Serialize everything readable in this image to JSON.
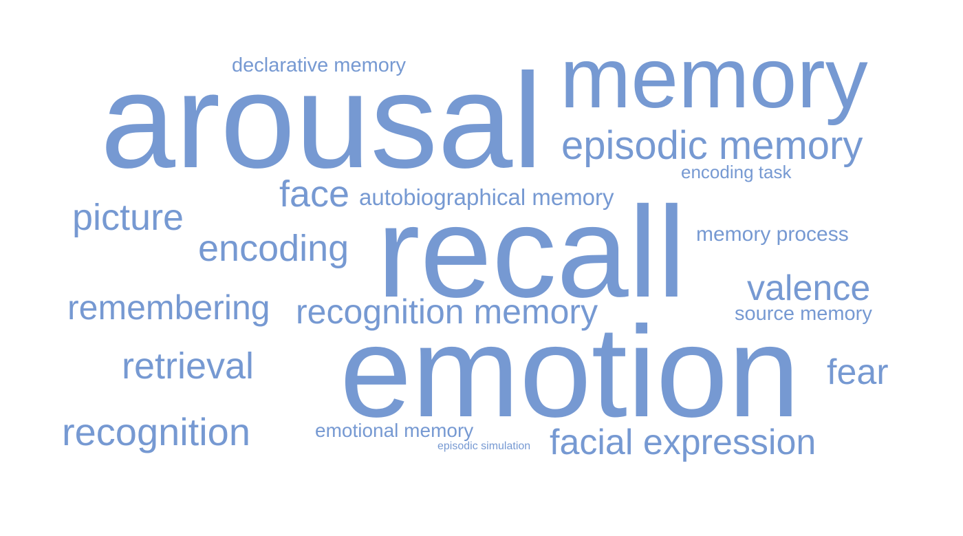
{
  "word_cloud": {
    "color": "#7699d2",
    "words": [
      {
        "id": "arousal",
        "text": "arousal"
      },
      {
        "id": "memory",
        "text": "memory"
      },
      {
        "id": "recall",
        "text": "recall"
      },
      {
        "id": "emotion",
        "text": "emotion"
      },
      {
        "id": "episodic-memory",
        "text": "episodic memory"
      },
      {
        "id": "declarative-memory",
        "text": "declarative memory"
      },
      {
        "id": "encoding-task",
        "text": "encoding task"
      },
      {
        "id": "face",
        "text": "face"
      },
      {
        "id": "autobiographical-memory",
        "text": "autobiographical memory"
      },
      {
        "id": "picture",
        "text": "picture"
      },
      {
        "id": "encoding",
        "text": "encoding"
      },
      {
        "id": "memory-process",
        "text": "memory process"
      },
      {
        "id": "valence",
        "text": "valence"
      },
      {
        "id": "remembering",
        "text": "remembering"
      },
      {
        "id": "recognition-memory",
        "text": "recognition memory"
      },
      {
        "id": "source-memory",
        "text": "source memory"
      },
      {
        "id": "retrieval",
        "text": "retrieval"
      },
      {
        "id": "fear",
        "text": "fear"
      },
      {
        "id": "recognition",
        "text": "recognition"
      },
      {
        "id": "emotional-memory",
        "text": "emotional memory"
      },
      {
        "id": "episodic-simulation",
        "text": "episodic simulation"
      },
      {
        "id": "facial-expression",
        "text": "facial expression"
      }
    ]
  }
}
